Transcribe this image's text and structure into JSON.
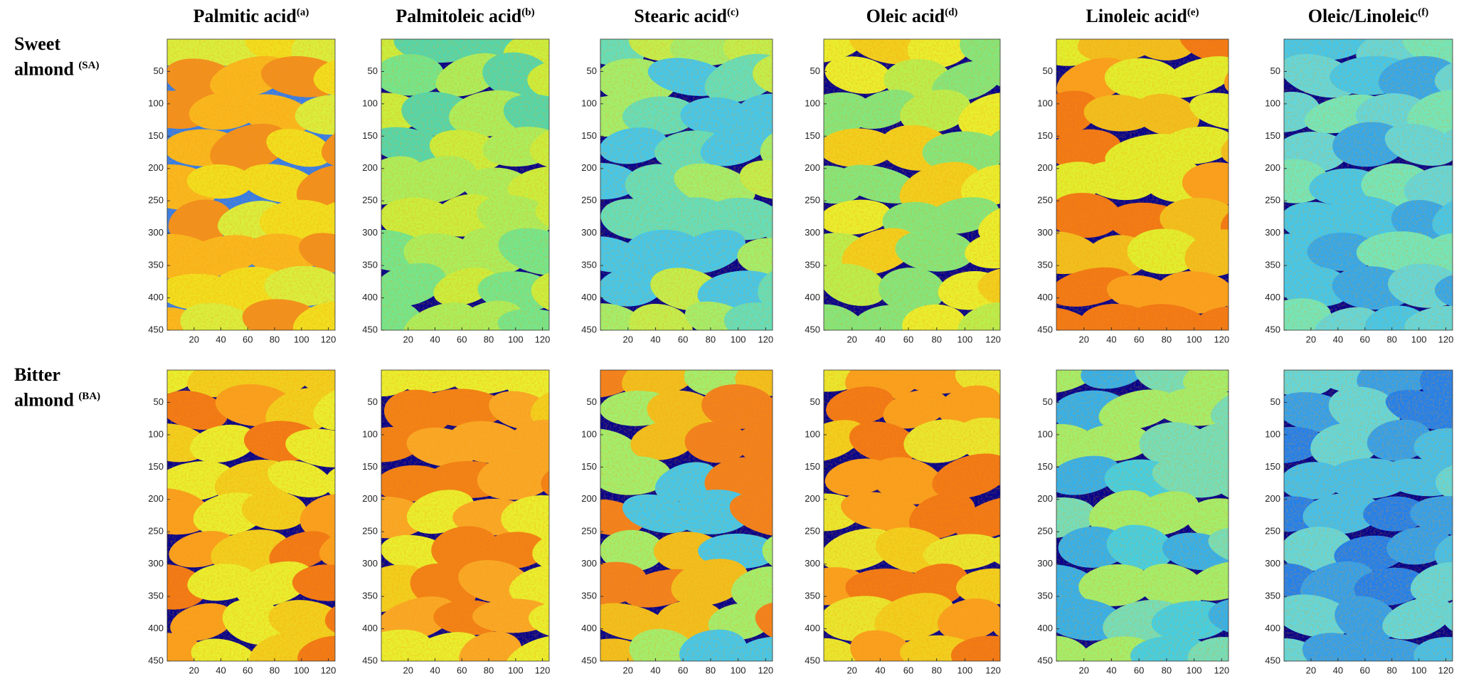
{
  "columns": [
    {
      "title": "Palmitic acid",
      "sup": "(a)"
    },
    {
      "title": "Palmitoleic acid",
      "sup": "(b)"
    },
    {
      "title": "Stearic acid",
      "sup": "(c)"
    },
    {
      "title": "Oleic acid",
      "sup": "(d)"
    },
    {
      "title": "Linoleic acid",
      "sup": "(e)"
    },
    {
      "title": "Oleic/Linoleic",
      "sup": "(f)"
    }
  ],
  "rows": [
    {
      "label": "Sweet almond",
      "sup": "(SA)"
    },
    {
      "label": "Bitter almond",
      "sup": "(BA)"
    }
  ],
  "axes": {
    "xlim": [
      0,
      125
    ],
    "xticks": [
      20,
      40,
      60,
      80,
      100,
      120
    ],
    "ylim": [
      0,
      450
    ],
    "yticks": [
      50,
      100,
      150,
      200,
      250,
      300,
      350,
      400,
      450
    ]
  }
}
